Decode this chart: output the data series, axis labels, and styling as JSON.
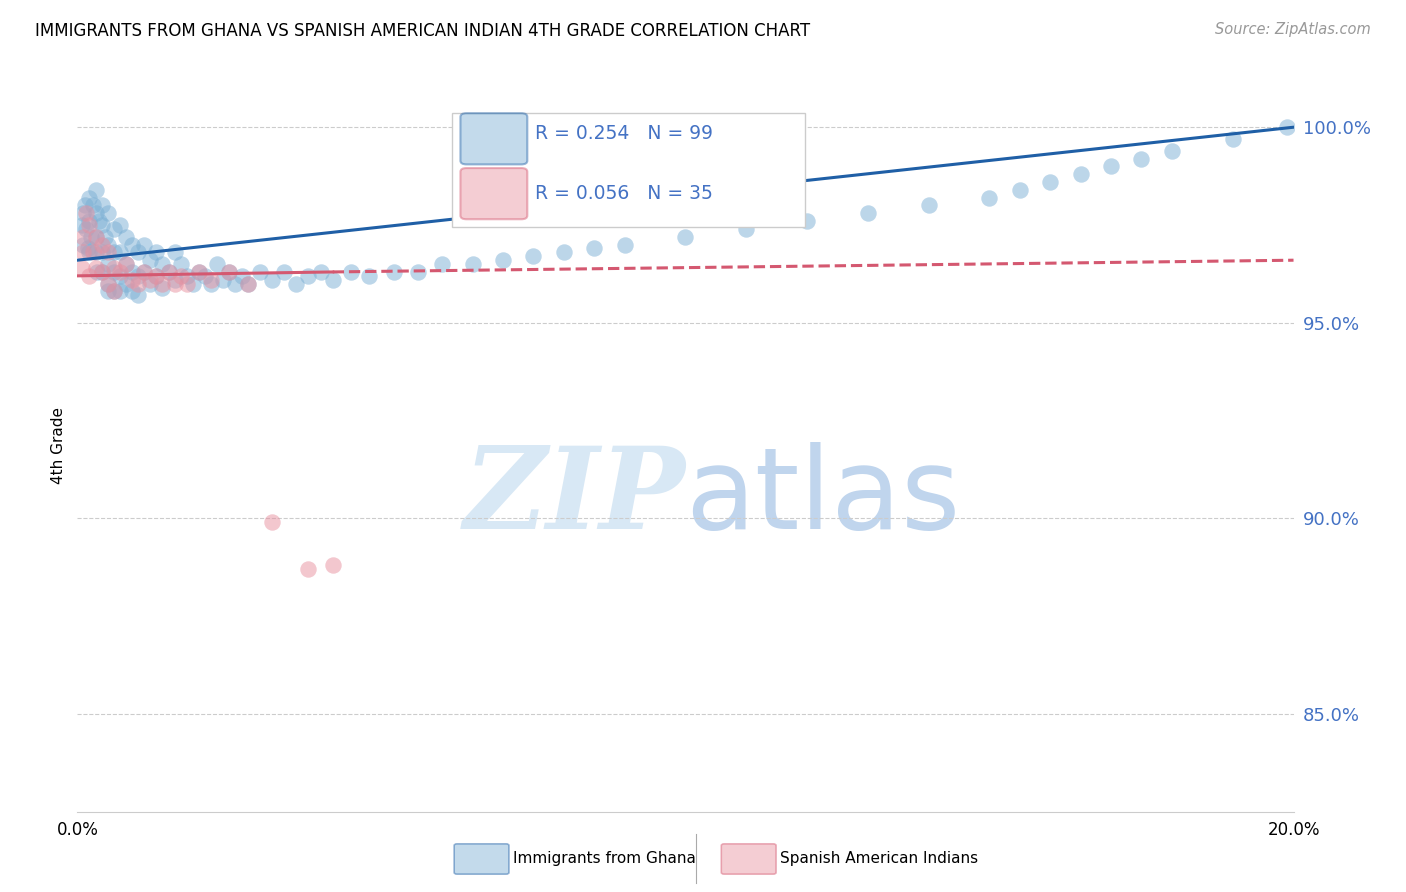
{
  "title": "IMMIGRANTS FROM GHANA VS SPANISH AMERICAN INDIAN 4TH GRADE CORRELATION CHART",
  "source": "Source: ZipAtlas.com",
  "ylabel": "4th Grade",
  "xlim": [
    0.0,
    0.2
  ],
  "ylim": [
    0.825,
    1.012
  ],
  "yticks": [
    0.85,
    0.9,
    0.95,
    1.0
  ],
  "ytick_labels": [
    "85.0%",
    "90.0%",
    "95.0%",
    "100.0%"
  ],
  "ghana_R": 0.254,
  "ghana_N": 99,
  "spanish_R": 0.056,
  "spanish_N": 35,
  "ghana_color": "#7bafd4",
  "spanish_color": "#e8909f",
  "trendline_ghana_color": "#1f5fa6",
  "trendline_spanish_color": "#d45870",
  "watermark_zip_color": "#d8e8f5",
  "watermark_atlas_color": "#c0d5ed",
  "legend_label_ghana": "Immigrants from Ghana",
  "legend_label_spanish": "Spanish American Indians",
  "ghana_x": [
    0.0008,
    0.001,
    0.001,
    0.0012,
    0.0015,
    0.0018,
    0.002,
    0.002,
    0.002,
    0.0022,
    0.0025,
    0.003,
    0.003,
    0.003,
    0.003,
    0.0032,
    0.0035,
    0.004,
    0.004,
    0.004,
    0.004,
    0.0045,
    0.005,
    0.005,
    0.005,
    0.005,
    0.005,
    0.006,
    0.006,
    0.006,
    0.006,
    0.007,
    0.007,
    0.007,
    0.007,
    0.008,
    0.008,
    0.008,
    0.009,
    0.009,
    0.009,
    0.01,
    0.01,
    0.01,
    0.011,
    0.011,
    0.012,
    0.012,
    0.013,
    0.013,
    0.014,
    0.014,
    0.015,
    0.016,
    0.016,
    0.017,
    0.018,
    0.019,
    0.02,
    0.021,
    0.022,
    0.023,
    0.024,
    0.025,
    0.026,
    0.027,
    0.028,
    0.03,
    0.032,
    0.034,
    0.036,
    0.038,
    0.04,
    0.042,
    0.045,
    0.048,
    0.052,
    0.056,
    0.06,
    0.065,
    0.07,
    0.075,
    0.08,
    0.085,
    0.09,
    0.1,
    0.11,
    0.12,
    0.13,
    0.14,
    0.15,
    0.155,
    0.16,
    0.165,
    0.17,
    0.175,
    0.18,
    0.19,
    0.199
  ],
  "ghana_y": [
    0.975,
    0.97,
    0.978,
    0.98,
    0.974,
    0.969,
    0.976,
    0.982,
    0.968,
    0.972,
    0.98,
    0.978,
    0.972,
    0.968,
    0.984,
    0.963,
    0.976,
    0.98,
    0.975,
    0.968,
    0.963,
    0.972,
    0.978,
    0.97,
    0.965,
    0.96,
    0.958,
    0.974,
    0.968,
    0.963,
    0.958,
    0.975,
    0.968,
    0.962,
    0.958,
    0.972,
    0.965,
    0.96,
    0.97,
    0.963,
    0.958,
    0.968,
    0.962,
    0.957,
    0.97,
    0.963,
    0.966,
    0.96,
    0.968,
    0.962,
    0.965,
    0.959,
    0.963,
    0.968,
    0.961,
    0.965,
    0.962,
    0.96,
    0.963,
    0.962,
    0.96,
    0.965,
    0.961,
    0.963,
    0.96,
    0.962,
    0.96,
    0.963,
    0.961,
    0.963,
    0.96,
    0.962,
    0.963,
    0.961,
    0.963,
    0.962,
    0.963,
    0.963,
    0.965,
    0.965,
    0.966,
    0.967,
    0.968,
    0.969,
    0.97,
    0.972,
    0.974,
    0.976,
    0.978,
    0.98,
    0.982,
    0.984,
    0.986,
    0.988,
    0.99,
    0.992,
    0.994,
    0.997,
    1.0
  ],
  "spanish_x": [
    0.0008,
    0.001,
    0.001,
    0.0015,
    0.002,
    0.002,
    0.0025,
    0.003,
    0.003,
    0.004,
    0.004,
    0.005,
    0.005,
    0.006,
    0.006,
    0.007,
    0.008,
    0.009,
    0.01,
    0.011,
    0.012,
    0.013,
    0.014,
    0.015,
    0.016,
    0.017,
    0.018,
    0.02,
    0.022,
    0.025,
    0.028,
    0.032,
    0.038,
    0.042,
    0.075
  ],
  "spanish_y": [
    0.964,
    0.972,
    0.968,
    0.978,
    0.962,
    0.975,
    0.968,
    0.972,
    0.964,
    0.97,
    0.963,
    0.968,
    0.96,
    0.964,
    0.958,
    0.963,
    0.965,
    0.961,
    0.96,
    0.963,
    0.961,
    0.962,
    0.96,
    0.963,
    0.96,
    0.962,
    0.96,
    0.963,
    0.961,
    0.963,
    0.96,
    0.899,
    0.887,
    0.888,
    0.978
  ]
}
